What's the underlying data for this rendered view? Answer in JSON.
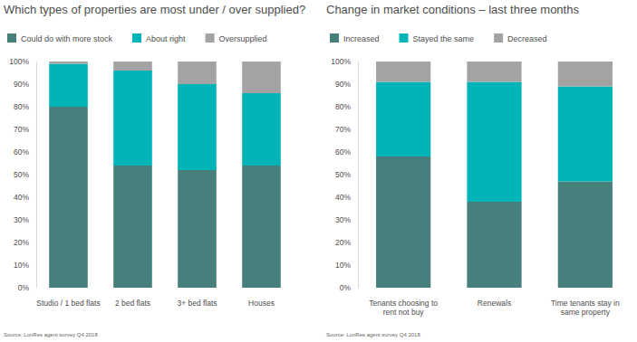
{
  "chart_data": [
    {
      "type": "bar",
      "stacked": true,
      "legend": "top-left",
      "title": "Which types of properties are most under / over supplied?",
      "categories": [
        "Studio / 1 bed flats",
        "2 bed flats",
        "3+ bed flats",
        "Houses"
      ],
      "series": [
        {
          "name": "Could do with more stock",
          "color": "#467f7b",
          "values": [
            80,
            54,
            52,
            54
          ]
        },
        {
          "name": "About right",
          "color": "#00b4b8",
          "values": [
            19,
            42,
            38,
            32
          ]
        },
        {
          "name": "Oversupplied",
          "color": "#a3a3a3",
          "values": [
            1,
            4,
            10,
            14
          ]
        }
      ],
      "ylim": [
        0,
        100
      ],
      "yticks": [
        {
          "value": 0,
          "label": "0%"
        },
        {
          "value": 10,
          "label": "10%"
        },
        {
          "value": 20,
          "label": "20%"
        },
        {
          "value": 30,
          "label": "30%"
        },
        {
          "value": 40,
          "label": "40%"
        },
        {
          "value": 50,
          "label": "50%"
        },
        {
          "value": 60,
          "label": "60%"
        },
        {
          "value": 70,
          "label": "70%"
        },
        {
          "value": 80,
          "label": "80%"
        },
        {
          "value": 90,
          "label": "90%"
        },
        {
          "value": 100,
          "label": "100%"
        }
      ],
      "source": "Source: LonRes agent survey Q4 2018"
    },
    {
      "type": "bar",
      "stacked": true,
      "legend": "top-left",
      "title": "Change in market conditions – last three months",
      "categories": [
        "Tenants choosing to rent not buy",
        "Renewals",
        "Time tenants stay in same property"
      ],
      "series": [
        {
          "name": "Increased",
          "color": "#467f7b",
          "values": [
            58,
            38,
            47
          ]
        },
        {
          "name": "Stayed the same",
          "color": "#00b4b8",
          "values": [
            33,
            53,
            42
          ]
        },
        {
          "name": "Decreased",
          "color": "#a3a3a3",
          "values": [
            9,
            9,
            11
          ]
        }
      ],
      "ylim": [
        0,
        100
      ],
      "yticks": [
        {
          "value": 0,
          "label": "0%"
        },
        {
          "value": 10,
          "label": "10%"
        },
        {
          "value": 20,
          "label": "20%"
        },
        {
          "value": 30,
          "label": "30%"
        },
        {
          "value": 40,
          "label": "40%"
        },
        {
          "value": 50,
          "label": "50%"
        },
        {
          "value": 60,
          "label": "60%"
        },
        {
          "value": 70,
          "label": "70%"
        },
        {
          "value": 80,
          "label": "80%"
        },
        {
          "value": 90,
          "label": "90%"
        },
        {
          "value": 100,
          "label": "100%"
        }
      ],
      "source": "Source: LonRes agent survey Q4 2018"
    }
  ]
}
